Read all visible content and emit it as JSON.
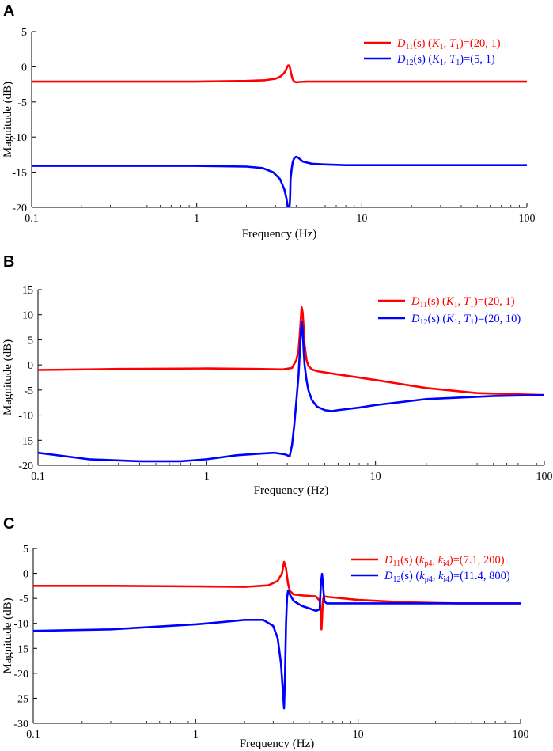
{
  "chart_data": [
    {
      "type": "line",
      "panel": "A",
      "xlabel": "Frequency  (Hz)",
      "ylabel": "Magnitude (dB)",
      "xscale": "log",
      "xlim": [
        0.1,
        100
      ],
      "ylim": [
        -20,
        5
      ],
      "xticks": [
        0.1,
        1,
        10,
        100
      ],
      "xtick_labels": [
        "0.1",
        "1",
        "10",
        "100"
      ],
      "yticks": [
        5,
        0,
        -5,
        -10,
        -15,
        -20
      ],
      "ytick_labels": [
        "5",
        "0",
        "-5",
        "-10",
        "-15",
        "-20"
      ],
      "legend_position": "top-right",
      "series": [
        {
          "name": "D11(s)",
          "legend": {
            "var": "D",
            "sub": "11",
            "mid": "(s)  (",
            "p1": "K",
            "p1sub": "1",
            "p2": "T",
            "p2sub": "1",
            "val": ")=(20,   1)",
            "italic_params": true
          },
          "color": "#ff0000",
          "x": [
            0.1,
            0.3,
            1,
            2,
            2.6,
            3.0,
            3.2,
            3.35,
            3.45,
            3.52,
            3.58,
            3.63,
            3.68,
            3.72,
            3.78,
            3.84,
            3.9,
            4.0,
            4.2,
            4.6,
            5.5,
            10,
            30,
            100
          ],
          "y": [
            -2.1,
            -2.1,
            -2.1,
            -2.0,
            -1.9,
            -1.7,
            -1.4,
            -1.0,
            -0.6,
            -0.1,
            0.2,
            0.2,
            -0.2,
            -0.8,
            -1.5,
            -1.9,
            -2.1,
            -2.2,
            -2.15,
            -2.1,
            -2.1,
            -2.1,
            -2.1,
            -2.1
          ]
        },
        {
          "name": "D12(s)",
          "legend": {
            "var": "D",
            "sub": "12",
            "mid": "(s)  (",
            "p1": "K",
            "p1sub": "1",
            "p2": "T",
            "p2sub": "1",
            "val": ")=(5,   1)",
            "italic_params": true
          },
          "color": "#0000ff",
          "x": [
            0.1,
            0.3,
            1,
            2,
            2.5,
            2.9,
            3.2,
            3.4,
            3.5,
            3.55,
            3.6,
            3.62,
            3.64,
            3.66,
            3.68,
            3.7,
            3.76,
            3.82,
            3.9,
            4.0,
            4.1,
            4.2,
            4.4,
            5,
            6,
            8,
            15,
            100
          ],
          "y": [
            -14.1,
            -14.1,
            -14.1,
            -14.2,
            -14.4,
            -15.0,
            -16.0,
            -17.5,
            -18.8,
            -19.8,
            -20,
            -20,
            -20,
            -19.5,
            -18.5,
            -16,
            -14.5,
            -13.5,
            -13.0,
            -12.8,
            -12.9,
            -13.1,
            -13.5,
            -13.8,
            -13.9,
            -14.0,
            -14.0,
            -14.0
          ]
        }
      ]
    },
    {
      "type": "line",
      "panel": "B",
      "xlabel": "Frequency  (Hz)",
      "ylabel": "Magnitude (dB)",
      "xscale": "log",
      "xlim": [
        0.1,
        100
      ],
      "ylim": [
        -20,
        15
      ],
      "xticks": [
        0.1,
        1,
        10,
        100
      ],
      "xtick_labels": [
        "0.1",
        "1",
        "10",
        "100"
      ],
      "yticks": [
        15,
        10,
        5,
        0,
        -5,
        -10,
        -15,
        -20
      ],
      "ytick_labels": [
        "15",
        "10",
        "5",
        "0",
        "-5",
        "-10",
        "-15",
        "-20"
      ],
      "legend_position": "top-right",
      "series": [
        {
          "name": "D11(s)",
          "legend": {
            "var": "D",
            "sub": "11",
            "mid": "(s)  (",
            "p1": "K",
            "p1sub": "1",
            "p2": "T",
            "p2sub": "1",
            "val": ")=(20,   1)",
            "italic_params": true
          },
          "color": "#ff0000",
          "x": [
            0.1,
            0.3,
            1,
            2,
            2.8,
            3.2,
            3.4,
            3.5,
            3.55,
            3.6,
            3.65,
            3.7,
            3.75,
            3.8,
            3.9,
            4.0,
            4.2,
            4.6,
            6,
            10,
            20,
            40,
            100
          ],
          "y": [
            -1.0,
            -0.8,
            -0.7,
            -0.8,
            -0.9,
            -0.6,
            1.0,
            3.0,
            5.5,
            8.5,
            11.5,
            10.5,
            7.5,
            4.0,
            1.0,
            -0.2,
            -0.9,
            -1.3,
            -1.9,
            -3.0,
            -4.6,
            -5.6,
            -6.0
          ]
        },
        {
          "name": "D12(s)",
          "legend": {
            "var": "D",
            "sub": "12",
            "mid": "(s)  (",
            "p1": "K",
            "p1sub": "1",
            "p2": "T",
            "p2sub": "1",
            "val": ")=(20,   10)",
            "italic_params": true
          },
          "color": "#0000ff",
          "x": [
            0.1,
            0.2,
            0.4,
            0.7,
            1,
            1.5,
            2,
            2.5,
            2.9,
            3.1,
            3.2,
            3.3,
            3.4,
            3.5,
            3.6,
            3.65,
            3.7,
            3.75,
            3.8,
            3.9,
            4.0,
            4.2,
            4.5,
            5,
            5.5,
            6,
            8,
            10,
            20,
            50,
            100
          ],
          "y": [
            -17.5,
            -18.8,
            -19.2,
            -19.2,
            -18.8,
            -18.0,
            -17.7,
            -17.5,
            -17.8,
            -18.2,
            -16.0,
            -12.0,
            -7.0,
            -2.0,
            5.5,
            8.7,
            7.0,
            3.0,
            0.0,
            -3.0,
            -5.0,
            -7.0,
            -8.3,
            -9.0,
            -9.2,
            -9.0,
            -8.5,
            -8.0,
            -6.8,
            -6.2,
            -6.0
          ]
        }
      ]
    },
    {
      "type": "line",
      "panel": "C",
      "xlabel": "Frequency  (Hz)",
      "ylabel": "Magnitude (dB)",
      "xscale": "log",
      "xlim": [
        0.1,
        100
      ],
      "ylim": [
        -30,
        5
      ],
      "xticks": [
        0.1,
        1,
        10,
        100
      ],
      "xtick_labels": [
        "0.1",
        "1",
        "10",
        "100"
      ],
      "yticks": [
        5,
        0,
        -5,
        -10,
        -15,
        -20,
        -25,
        -30
      ],
      "ytick_labels": [
        "5",
        "0",
        "-5",
        "-10",
        "-15",
        "-20",
        "-25",
        "-30"
      ],
      "legend_position": "top-right",
      "series": [
        {
          "name": "D11(s)",
          "legend": {
            "var": "D",
            "sub": "11",
            "mid": "(s)  (",
            "p1": "k",
            "p1sub": "p4",
            "p2": "k",
            "p2sub": "i4",
            "val": ")=(7.1,   200)",
            "italic_params": true
          },
          "color": "#ff0000",
          "x": [
            0.1,
            0.3,
            1,
            2,
            2.8,
            3.2,
            3.4,
            3.5,
            3.6,
            3.7,
            3.8,
            4.0,
            4.5,
            5,
            5.5,
            5.8,
            5.9,
            5.95,
            6.0,
            6.05,
            6.1,
            6.2,
            6.5,
            8,
            10,
            20,
            40,
            100
          ],
          "y": [
            -2.5,
            -2.5,
            -2.6,
            -2.7,
            -2.4,
            -1.5,
            0.0,
            2.3,
            1.0,
            -2.0,
            -3.5,
            -4.2,
            -4.4,
            -4.5,
            -4.6,
            -5.5,
            -8.0,
            -11.2,
            -9.0,
            -6.0,
            -5.0,
            -4.6,
            -4.7,
            -5.0,
            -5.3,
            -5.8,
            -6.0,
            -6.0
          ]
        },
        {
          "name": "D12(s)",
          "legend": {
            "var": "D",
            "sub": "12",
            "mid": "(s)  (",
            "p1": "k",
            "p1sub": "p4",
            "p2": "k",
            "p2sub": "i4",
            "val": ")=(11.4,   800)",
            "italic_params": true
          },
          "color": "#0000ff",
          "x": [
            0.1,
            0.3,
            1,
            1.5,
            2,
            2.6,
            3.0,
            3.2,
            3.35,
            3.45,
            3.5,
            3.55,
            3.6,
            3.65,
            3.7,
            3.8,
            4.0,
            4.5,
            5,
            5.5,
            5.8,
            5.9,
            6.0,
            6.1,
            6.2,
            6.4,
            7,
            10,
            20,
            100
          ],
          "y": [
            -11.5,
            -11.2,
            -10.2,
            -9.7,
            -9.3,
            -9.3,
            -10.5,
            -13.0,
            -18.0,
            -24.0,
            -27.0,
            -20.0,
            -10.0,
            -5.0,
            -3.5,
            -4.2,
            -5.5,
            -6.5,
            -7.0,
            -7.5,
            -7.2,
            -2.0,
            -0.1,
            -3.0,
            -5.6,
            -6.0,
            -6.0,
            -6.0,
            -6.0,
            -6.0
          ]
        }
      ]
    }
  ]
}
